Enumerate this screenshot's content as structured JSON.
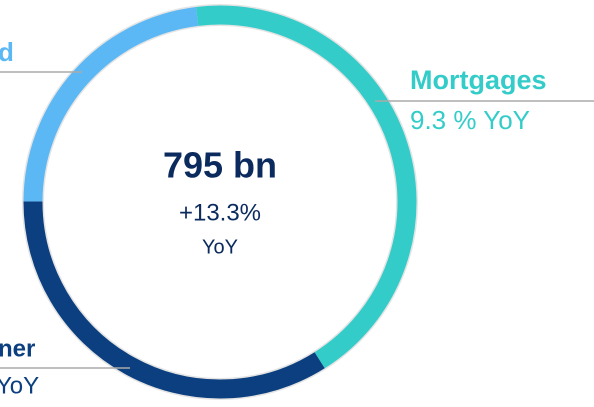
{
  "chart_data": {
    "type": "donut",
    "center_title": "795 bn",
    "center_subtitle": "+13.3%",
    "center_note": "YoY",
    "categories": [
      "Mortgages",
      "ner",
      "d"
    ],
    "sublabels": [
      "9.3 % YoY",
      "YoY",
      null
    ],
    "values": [
      43,
      34,
      23
    ],
    "colors": [
      "#33ccc9",
      "#0b3f7f",
      "#5bb8f5"
    ]
  }
}
